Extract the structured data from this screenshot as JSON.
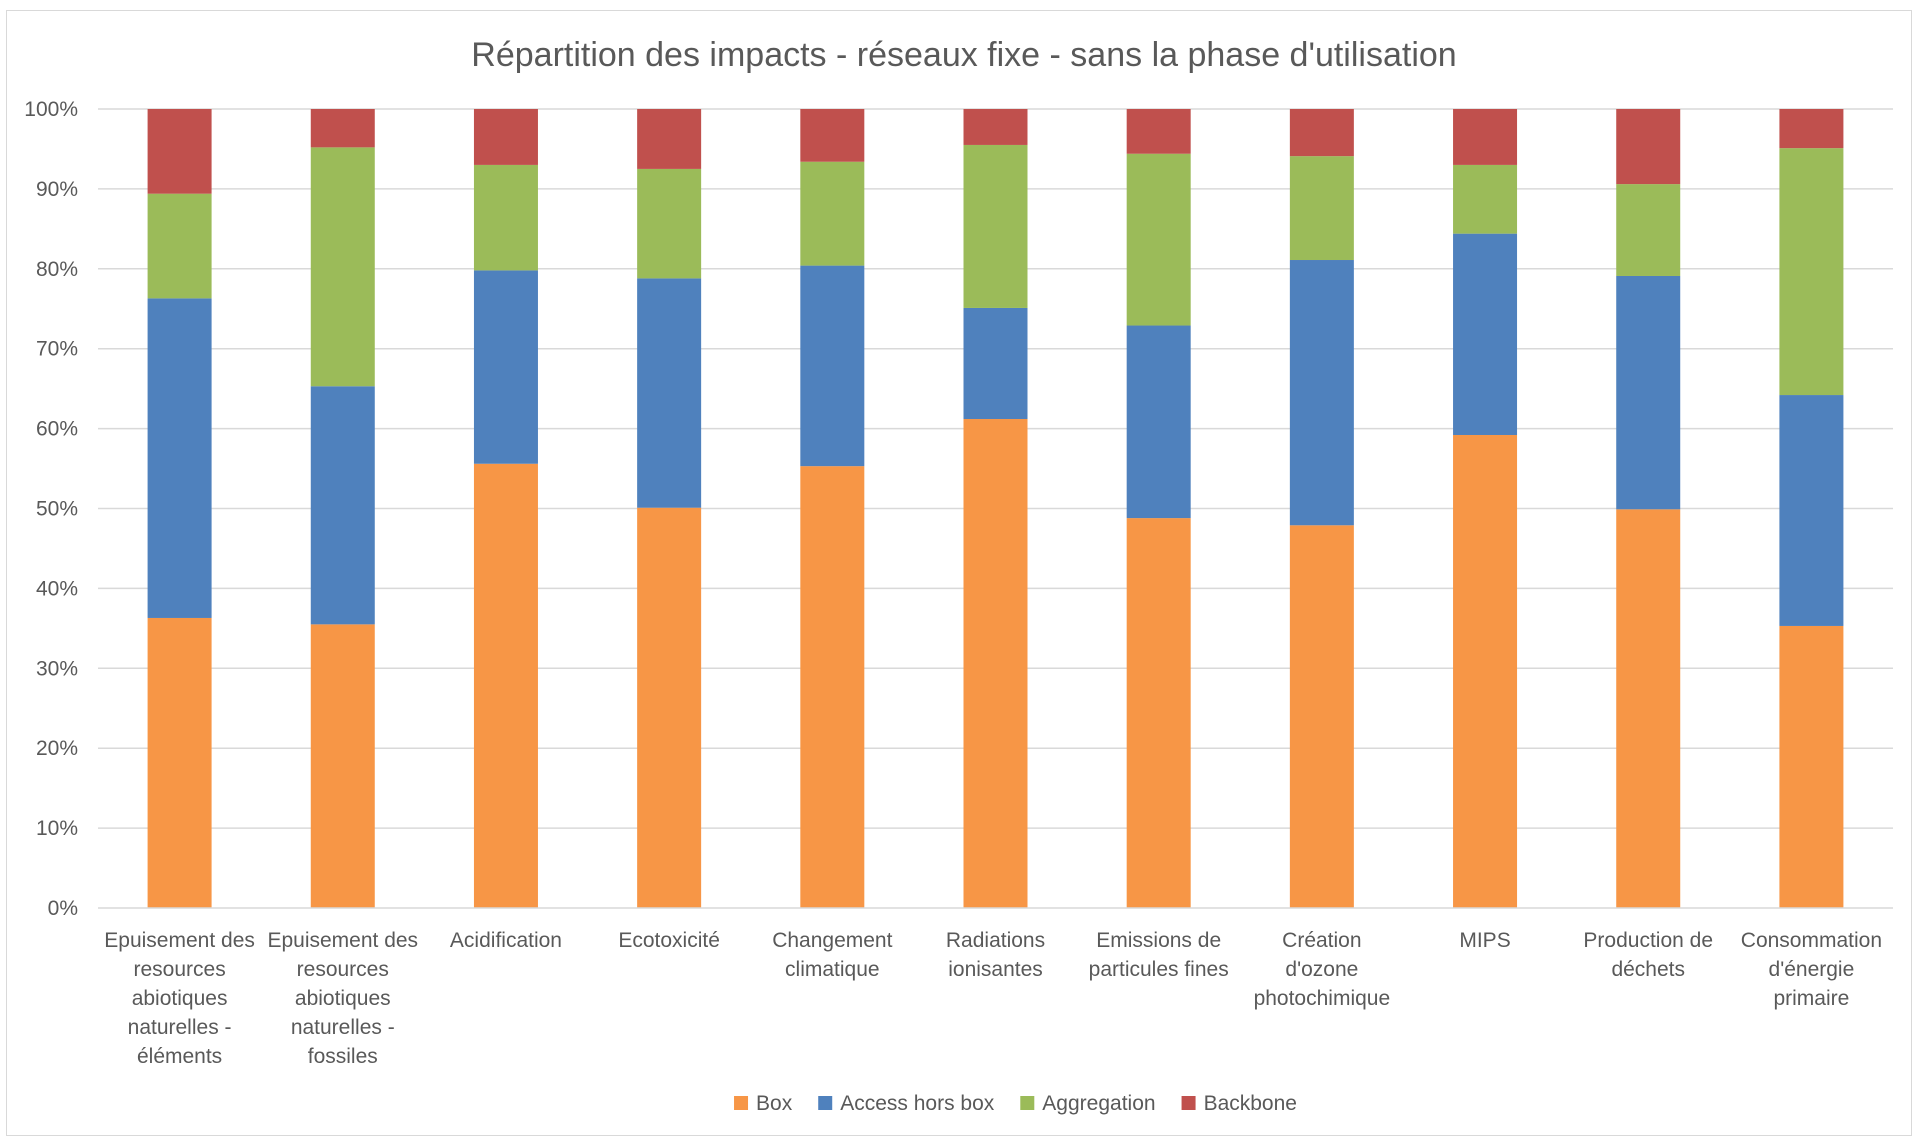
{
  "chart_data": {
    "type": "bar",
    "stacked": true,
    "title": "Répartition des impacts - réseaux fixe - sans la phase d'utilisation",
    "ylim": [
      0,
      100
    ],
    "yticks": [
      "0%",
      "10%",
      "20%",
      "30%",
      "40%",
      "50%",
      "60%",
      "70%",
      "80%",
      "90%",
      "100%"
    ],
    "grid": true,
    "legend_position": "bottom",
    "categories": [
      [
        "Epuisement des",
        "resources",
        "abiotiques",
        "naturelles -",
        "éléments"
      ],
      [
        "Epuisement des",
        "resources",
        "abiotiques",
        "naturelles -",
        "fossiles"
      ],
      [
        "Acidification"
      ],
      [
        "Ecotoxicité"
      ],
      [
        "Changement",
        "climatique"
      ],
      [
        "Radiations",
        "ionisantes"
      ],
      [
        "Emissions de",
        "particules fines"
      ],
      [
        "Création",
        "d'ozone",
        "photochimique"
      ],
      [
        "MIPS"
      ],
      [
        "Production de",
        "déchets"
      ],
      [
        "Consommation",
        "d'énergie",
        "primaire"
      ]
    ],
    "series": [
      {
        "name": "Box",
        "color": "#f79646",
        "values": [
          36.3,
          35.5,
          55.6,
          50.1,
          55.3,
          61.2,
          48.8,
          47.9,
          59.2,
          49.9,
          35.3
        ]
      },
      {
        "name": "Access hors box",
        "color": "#4f81bd",
        "values": [
          40.0,
          29.8,
          24.2,
          28.7,
          25.1,
          13.9,
          24.1,
          33.2,
          25.2,
          29.2,
          28.9
        ]
      },
      {
        "name": "Aggregation",
        "color": "#9bbb59",
        "values": [
          13.1,
          29.9,
          13.2,
          13.7,
          13.0,
          20.4,
          21.5,
          13.0,
          8.6,
          11.5,
          30.9
        ]
      },
      {
        "name": "Backbone",
        "color": "#c0504d",
        "values": [
          10.6,
          4.8,
          7.0,
          7.5,
          6.6,
          4.5,
          5.6,
          5.9,
          7.0,
          9.4,
          4.9
        ]
      }
    ]
  }
}
